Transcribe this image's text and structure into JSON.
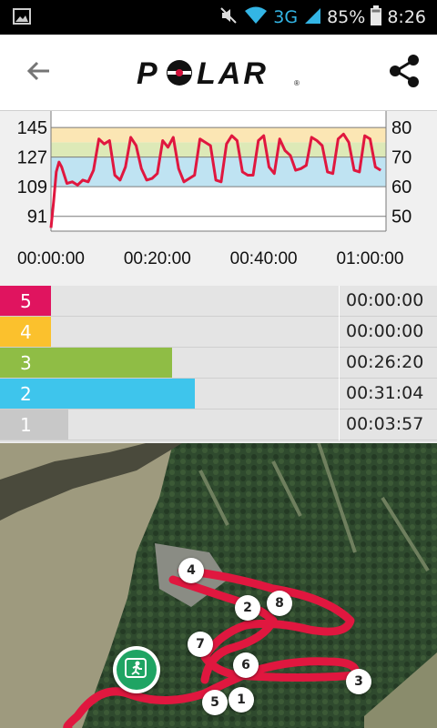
{
  "status_bar": {
    "network": "3G",
    "battery": "85%",
    "time": "8:26"
  },
  "app_bar": {
    "logo_text": "POLAR",
    "back_icon": "arrow-left-icon",
    "share_icon": "share-icon"
  },
  "chart_data": {
    "type": "line",
    "series": [
      {
        "color": "#e0173f",
        "x": [
          0,
          0.5,
          1,
          1.5,
          2,
          3,
          4,
          5,
          6,
          7,
          8,
          9,
          10,
          11,
          12,
          13,
          14,
          15,
          16,
          17,
          18,
          19,
          20,
          21,
          22,
          23,
          24,
          25,
          26,
          27,
          28,
          29,
          30,
          31,
          32,
          33,
          34,
          35,
          36,
          37,
          38,
          39,
          40,
          41,
          42,
          43,
          44,
          45,
          46,
          47,
          48,
          49,
          50,
          51,
          52,
          53,
          54,
          55,
          56,
          57,
          58,
          59,
          60,
          61,
          62
        ],
        "y": [
          84,
          100,
          118,
          124,
          121,
          111,
          112,
          110,
          113,
          112,
          119,
          138,
          135,
          137,
          116,
          113,
          121,
          139,
          134,
          120,
          113,
          114,
          117,
          137,
          133,
          139,
          120,
          112,
          114,
          116,
          138,
          136,
          134,
          113,
          112,
          135,
          140,
          137,
          118,
          116,
          116,
          137,
          140,
          121,
          117,
          138,
          131,
          128,
          119,
          120,
          122,
          139,
          137,
          134,
          118,
          117,
          138,
          141,
          136,
          119,
          118,
          140,
          138,
          121,
          119
        ]
      }
    ],
    "x_ticks": [
      "00:00:00",
      "00:20:00",
      "00:40:00",
      "01:00:00"
    ],
    "y_ticks_left": [
      "145",
      "127",
      "109",
      "91"
    ],
    "y_ticks_right": [
      "80",
      "70",
      "60",
      "50"
    ],
    "xlim": [
      0,
      63
    ],
    "ylim": [
      82,
      155
    ],
    "zone_bands": [
      {
        "from": 109,
        "to": 127,
        "color": "#bfe3f2"
      },
      {
        "from": 127,
        "to": 136,
        "color": "#dde9b7"
      },
      {
        "from": 136,
        "to": 145,
        "color": "#fbe6b4"
      }
    ],
    "gridlines": [
      145,
      127,
      109,
      91
    ]
  },
  "zones": [
    {
      "label": "5",
      "color": "#e0145f",
      "fraction": 0.0,
      "time": "00:00:00"
    },
    {
      "label": "4",
      "color": "#fbc12d",
      "fraction": 0.0,
      "time": "00:00:00"
    },
    {
      "label": "3",
      "color": "#8fbd45",
      "fraction": 0.42,
      "time": "00:26:20"
    },
    {
      "label": "2",
      "color": "#3ec5ec",
      "fraction": 0.5,
      "time": "00:31:04"
    },
    {
      "label": "1",
      "color": "#c8c8c8",
      "fraction": 0.06,
      "time": "00:03:57"
    }
  ],
  "map": {
    "markers": [
      "1",
      "2",
      "3",
      "4",
      "5",
      "6",
      "7",
      "8"
    ],
    "start_icon": "running-man-icon",
    "route_color": "#e0173f"
  }
}
